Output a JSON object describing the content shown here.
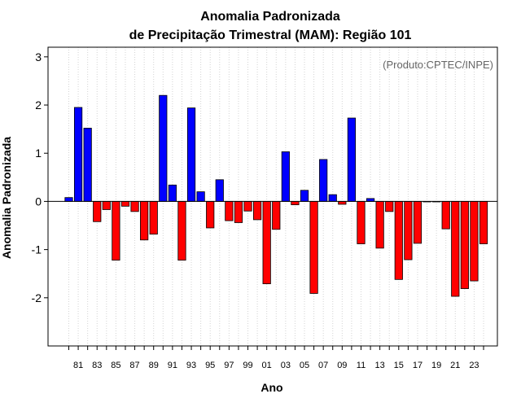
{
  "chart_data": {
    "type": "bar",
    "title": "Anomalia Padronizada",
    "subtitle": "de Precipitação Trimestral (MAM): Região 101",
    "xlabel": "Ano",
    "ylabel": "Anomalia Padronizada",
    "credit": "(Produto:CPTEC/INPE)",
    "ylim": [
      -3,
      3.2
    ],
    "yticks": [
      -2,
      -1,
      0,
      1,
      2,
      3
    ],
    "ytick_labels": [
      "-2",
      "-1",
      "0",
      "1",
      "2",
      "3"
    ],
    "categories": [
      "80",
      "81",
      "82",
      "83",
      "84",
      "85",
      "86",
      "87",
      "88",
      "89",
      "90",
      "91",
      "92",
      "93",
      "94",
      "95",
      "96",
      "97",
      "98",
      "99",
      "00",
      "01",
      "02",
      "03",
      "04",
      "05",
      "06",
      "07",
      "08",
      "09",
      "10",
      "11",
      "12",
      "13",
      "14",
      "15",
      "16",
      "17",
      "18",
      "19",
      "20",
      "21",
      "22",
      "23",
      "24"
    ],
    "xtick_labels": [
      "81",
      "83",
      "85",
      "87",
      "89",
      "91",
      "93",
      "95",
      "97",
      "99",
      "01",
      "03",
      "05",
      "07",
      "09",
      "11",
      "13",
      "15",
      "17",
      "19",
      "21",
      "23"
    ],
    "values": [
      0.08,
      1.95,
      1.52,
      -0.42,
      -0.17,
      -1.22,
      -0.1,
      -0.21,
      -0.8,
      -0.68,
      2.2,
      0.34,
      -1.22,
      1.94,
      0.2,
      -0.55,
      0.45,
      -0.4,
      -0.44,
      -0.2,
      -0.38,
      -1.71,
      -0.58,
      1.03,
      -0.07,
      0.23,
      -1.91,
      0.87,
      0.14,
      -0.06,
      1.73,
      -0.88,
      0.06,
      -0.97,
      -0.21,
      -1.62,
      -1.21,
      -0.87,
      0.0,
      -0.01,
      -0.57,
      -1.97,
      -1.81,
      -1.65,
      -0.88
    ],
    "positive_color": "#0000ff",
    "negative_color": "#ff0000"
  }
}
